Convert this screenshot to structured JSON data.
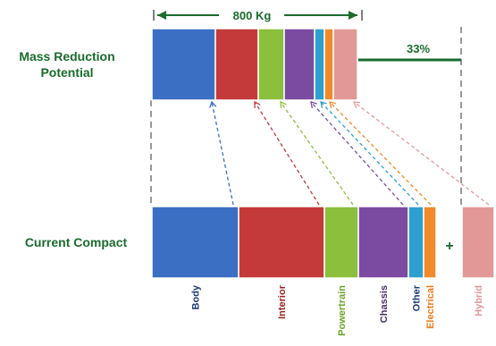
{
  "labels": {
    "mass_reduction": "Mass Reduction Potential",
    "current_compact": "Current Compact",
    "top_bracket": "800 Kg",
    "pct": "33%",
    "plus": "+"
  },
  "chart_data": {
    "type": "bar",
    "categories": [
      "Body",
      "Interior",
      "Powertrain",
      "Chassis",
      "Other",
      "Electrical",
      "Hybrid"
    ],
    "colors": [
      "#3a6fc3",
      "#c43a3a",
      "#8bbf3c",
      "#7a4ba0",
      "#2f9fcf",
      "#f08a2a",
      "#e39898"
    ],
    "label_colors": [
      "#1f3b7a",
      "#9c2424",
      "#6aa52a",
      "#4a2f6e",
      "#1f3b7a",
      "#f07a1a",
      "#e39898"
    ],
    "series": [
      {
        "name": "Current Compact",
        "values": [
          97,
          96,
          38,
          56,
          17,
          14,
          36
        ]
      },
      {
        "name": "Mass Reduction Potential",
        "values": [
          71,
          48,
          29,
          34,
          11,
          10,
          27
        ]
      }
    ],
    "mass_reduction_pct": 33
  }
}
